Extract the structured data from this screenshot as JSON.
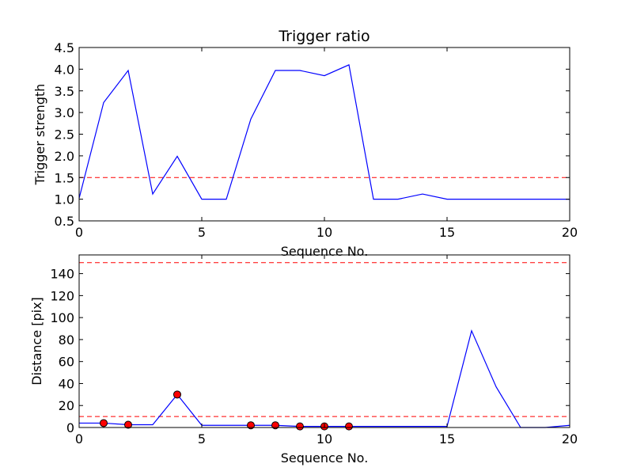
{
  "chart_data": [
    {
      "type": "line",
      "title": "Trigger ratio",
      "xlabel": "Sequence No.",
      "ylabel": "Trigger strength",
      "xlim": [
        0,
        20
      ],
      "ylim": [
        0.5,
        4.5
      ],
      "xticks": [
        0,
        5,
        10,
        15,
        20
      ],
      "yticks": [
        0.5,
        1.0,
        1.5,
        2.0,
        2.5,
        3.0,
        3.5,
        4.0,
        4.5
      ],
      "ytick_labels": [
        "0.5",
        "1.0",
        "1.5",
        "2.0",
        "2.5",
        "3.0",
        "3.5",
        "4.0",
        "4.5"
      ],
      "series": [
        {
          "color": "#0000ff",
          "x": [
            0,
            1,
            2,
            3,
            4,
            5,
            6,
            7,
            8,
            9,
            10,
            11,
            12,
            13,
            14,
            15,
            16,
            17,
            18,
            19,
            20
          ],
          "values": [
            1.02,
            3.23,
            3.97,
            1.12,
            1.99,
            1.0,
            1.0,
            2.85,
            3.97,
            3.97,
            3.85,
            4.1,
            1.0,
            1.0,
            1.12,
            1.0,
            1.0,
            1.0,
            1.0,
            1.0,
            1.0
          ]
        }
      ],
      "hlines": [
        {
          "y": 1.5,
          "color": "#ff0000",
          "style": "dashed"
        }
      ],
      "grid": false
    },
    {
      "type": "line",
      "title": "",
      "xlabel": "Sequence No.",
      "ylabel": "Distance [pix]",
      "xlim": [
        0,
        20
      ],
      "ylim": [
        0,
        157
      ],
      "xticks": [
        0,
        5,
        10,
        15,
        20
      ],
      "yticks": [
        0,
        20,
        40,
        60,
        80,
        100,
        120,
        140
      ],
      "ytick_labels": [
        "0",
        "20",
        "40",
        "60",
        "80",
        "100",
        "120",
        "140"
      ],
      "series": [
        {
          "color": "#0000ff",
          "x": [
            0,
            1,
            2,
            3,
            4,
            5,
            6,
            7,
            8,
            9,
            10,
            11,
            12,
            13,
            14,
            15,
            16,
            17,
            18,
            19,
            20
          ],
          "values": [
            4,
            4,
            2.5,
            2.5,
            30,
            2,
            2,
            2,
            2,
            1,
            1,
            1,
            1,
            1,
            1,
            1,
            88,
            37,
            0,
            0,
            2
          ]
        }
      ],
      "markers": {
        "color": "#ff0000",
        "x": [
          1,
          2,
          4,
          7,
          8,
          9,
          10,
          11
        ],
        "values": [
          4,
          2.5,
          30,
          2,
          2,
          1,
          1,
          1
        ]
      },
      "hlines": [
        {
          "y": 150,
          "color": "#ff0000",
          "style": "dashed"
        },
        {
          "y": 10,
          "color": "#ff0000",
          "style": "dashed"
        }
      ],
      "grid": false
    }
  ]
}
